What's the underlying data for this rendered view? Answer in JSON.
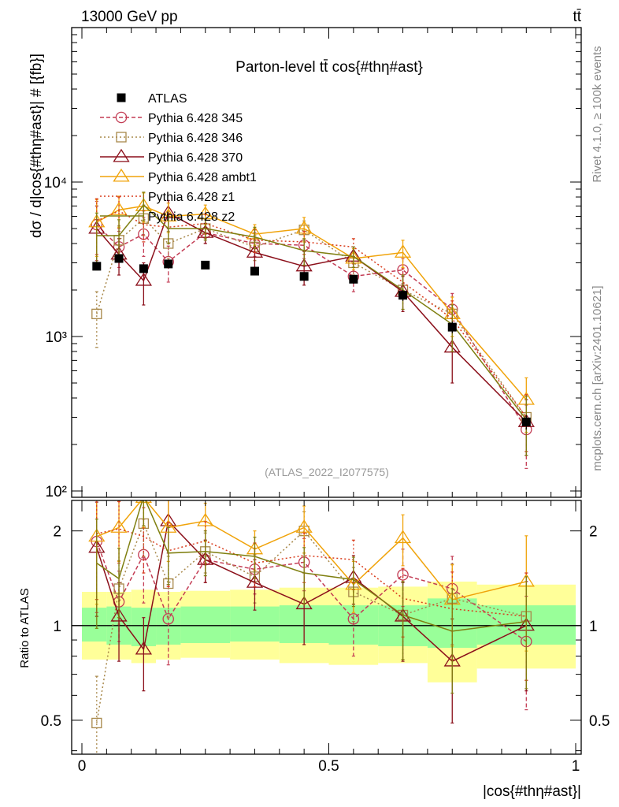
{
  "header": {
    "energy_label": "13000 GeV pp",
    "process_label": "tt̄"
  },
  "side_labels": {
    "rivet": "Rivet 4.1.0, ≥ 100k events",
    "mcplots": "mcplots.cern.ch [arXiv:2401.10621]"
  },
  "chart_data": [
    {
      "type": "scatter",
      "title": "Parton-level tt̄ cos{#thη#ast}",
      "watermark": "(ATLAS_2022_I2077575)",
      "ylabel": "dσ / d|cos{#thη#ast}| # [{fb}]",
      "xlabel": "",
      "yscale": "log",
      "xlim": [
        0,
        1
      ],
      "ylim": [
        100,
        100000
      ],
      "y_ticks": [
        {
          "value": 100,
          "label": "10²"
        },
        {
          "value": 1000,
          "label": "10³"
        },
        {
          "value": 10000,
          "label": "10⁴"
        }
      ],
      "x": [
        0.03,
        0.075,
        0.125,
        0.175,
        0.25,
        0.35,
        0.45,
        0.55,
        0.65,
        0.75,
        0.9
      ],
      "data": {
        "name": "ATLAS",
        "values": [
          2850,
          3200,
          2750,
          2950,
          2900,
          2650,
          2450,
          2350,
          1850,
          1150,
          280
        ],
        "errors": [
          150,
          150,
          150,
          150,
          150,
          150,
          150,
          150,
          150,
          100,
          30
        ]
      },
      "series": [
        {
          "name": "Pythia 6.428 345",
          "color": "#c33c54",
          "marker": "circle",
          "dash": "5,3",
          "values": [
            5300,
            3800,
            4600,
            3050,
            4700,
            4000,
            3900,
            2450,
            2700,
            1500,
            250
          ],
          "errors": [
            2200,
            1000,
            1300,
            800,
            700,
            700,
            700,
            500,
            500,
            400,
            110
          ]
        },
        {
          "name": "Pythia 6.428 346",
          "color": "#a8884a",
          "marker": "square",
          "dash": "2,3",
          "values": [
            1400,
            4200,
            5800,
            4000,
            5000,
            3800,
            4900,
            3000,
            2000,
            1400,
            300
          ],
          "errors": [
            550,
            1000,
            1300,
            800,
            700,
            700,
            700,
            500,
            500,
            400,
            120
          ]
        },
        {
          "name": "Pythia 6.428 370",
          "color": "#8b0f1a",
          "marker": "triangle",
          "dash": "",
          "values": [
            5000,
            3400,
            2300,
            6300,
            4700,
            3500,
            2850,
            3300,
            1950,
            850,
            280
          ],
          "errors": [
            2000,
            900,
            700,
            1300,
            700,
            700,
            700,
            500,
            500,
            350,
            110
          ]
        },
        {
          "name": "Pythia 6.428 ambt1",
          "color": "#f0a30a",
          "marker": "triangle",
          "dash": "",
          "values": [
            5500,
            6600,
            7000,
            6000,
            6200,
            4600,
            5000,
            3200,
            3500,
            1400,
            390
          ],
          "errors": [
            2200,
            1500,
            1500,
            1300,
            900,
            700,
            900,
            500,
            700,
            400,
            150
          ]
        },
        {
          "name": "Pythia 6.428 z1",
          "color": "#d93c1c",
          "marker": "none",
          "dash": "2,3",
          "values": [
            5600,
            6500,
            5300,
            5100,
            5400,
            4200,
            4100,
            3800,
            2250,
            1300,
            300
          ],
          "errors": [
            2200,
            1500,
            1200,
            1100,
            800,
            700,
            700,
            500,
            500,
            400,
            120
          ]
        },
        {
          "name": "Pythia 6.428 z2",
          "color": "#7f7f10",
          "marker": "none",
          "dash": "",
          "values": [
            4500,
            4500,
            7100,
            5000,
            5000,
            4400,
            3600,
            3300,
            2000,
            1200,
            290
          ],
          "errors": [
            1800,
            1200,
            1500,
            1000,
            800,
            700,
            700,
            500,
            500,
            400,
            120
          ]
        }
      ]
    },
    {
      "type": "scatter",
      "ylabel": "Ratio to ATLAS",
      "xlabel": "|cos{#thη#ast}|",
      "yscale": "log",
      "xlim": [
        0,
        1
      ],
      "ylim": [
        0.39,
        2.5
      ],
      "y_ticks": [
        {
          "value": 0.5,
          "label": "0.5"
        },
        {
          "value": 1,
          "label": "1"
        },
        {
          "value": 2,
          "label": "2"
        }
      ],
      "x_ticks": [
        {
          "value": 0,
          "label": "0"
        },
        {
          "value": 0.5,
          "label": "0.5"
        },
        {
          "value": 1,
          "label": "1"
        }
      ],
      "bands": {
        "edges": [
          0,
          0.05,
          0.1,
          0.15,
          0.2,
          0.3,
          0.4,
          0.5,
          0.6,
          0.7,
          0.8,
          1.0
        ],
        "yellow_lo": [
          0.78,
          0.78,
          0.76,
          0.78,
          0.79,
          0.78,
          0.76,
          0.75,
          0.76,
          0.66,
          0.73
        ],
        "yellow_hi": [
          1.28,
          1.28,
          1.3,
          1.28,
          1.29,
          1.3,
          1.32,
          1.32,
          1.33,
          1.38,
          1.35
        ],
        "green_lo": [
          0.89,
          0.87,
          0.86,
          0.87,
          0.88,
          0.89,
          0.88,
          0.87,
          0.86,
          0.85,
          0.87
        ],
        "green_hi": [
          1.14,
          1.15,
          1.14,
          1.14,
          1.15,
          1.15,
          1.16,
          1.16,
          1.16,
          1.22,
          1.16
        ]
      },
      "series": [
        {
          "name": "Pythia 6.428 345",
          "color": "#c33c54",
          "marker": "circle",
          "dash": "5,3",
          "values": [
            1.85,
            1.19,
            1.68,
            1.05,
            1.62,
            1.51,
            1.59,
            1.05,
            1.45,
            1.31,
            0.89
          ],
          "errors": [
            0.75,
            0.3,
            0.5,
            0.3,
            0.25,
            0.25,
            0.3,
            0.25,
            0.3,
            0.35,
            0.35
          ]
        },
        {
          "name": "Pythia 6.428 346",
          "color": "#a8884a",
          "marker": "square",
          "dash": "2,3",
          "values": [
            0.49,
            1.31,
            2.11,
            1.36,
            1.72,
            1.43,
            2.0,
            1.28,
            1.08,
            1.22,
            1.07
          ],
          "errors": [
            0.2,
            0.3,
            0.45,
            0.3,
            0.25,
            0.25,
            0.3,
            0.25,
            0.3,
            0.35,
            0.4
          ]
        },
        {
          "name": "Pythia 6.428 370",
          "color": "#8b0f1a",
          "marker": "triangle",
          "dash": "",
          "values": [
            1.77,
            1.07,
            0.84,
            2.15,
            1.62,
            1.37,
            1.17,
            1.42,
            1.07,
            0.77,
            1.0
          ],
          "errors": [
            0.7,
            0.3,
            0.22,
            0.45,
            0.25,
            0.25,
            0.3,
            0.25,
            0.3,
            0.28,
            0.38
          ]
        },
        {
          "name": "Pythia 6.428 ambt1",
          "color": "#f0a30a",
          "marker": "triangle",
          "dash": "",
          "values": [
            1.92,
            2.05,
            2.55,
            2.05,
            2.15,
            1.75,
            2.05,
            1.35,
            1.9,
            1.21,
            1.38
          ],
          "errors": [
            0.75,
            0.45,
            0.5,
            0.45,
            0.3,
            0.25,
            0.35,
            0.25,
            0.35,
            0.35,
            0.55
          ]
        },
        {
          "name": "Pythia 6.428 z1",
          "color": "#d93c1c",
          "marker": "none",
          "dash": "2,3",
          "values": [
            1.96,
            2.03,
            1.92,
            1.73,
            1.86,
            1.58,
            1.67,
            1.62,
            1.22,
            1.13,
            1.07
          ],
          "errors": [
            0.75,
            0.45,
            0.45,
            0.4,
            0.28,
            0.25,
            0.3,
            0.25,
            0.3,
            0.35,
            0.4
          ]
        },
        {
          "name": "Pythia 6.428 z2",
          "color": "#7f7f10",
          "marker": "none",
          "dash": "",
          "values": [
            1.58,
            1.41,
            2.58,
            1.7,
            1.72,
            1.66,
            1.47,
            1.4,
            1.08,
            0.96,
            1.03
          ],
          "errors": [
            0.6,
            0.35,
            0.5,
            0.35,
            0.28,
            0.25,
            0.3,
            0.25,
            0.3,
            0.35,
            0.4
          ]
        }
      ]
    }
  ]
}
